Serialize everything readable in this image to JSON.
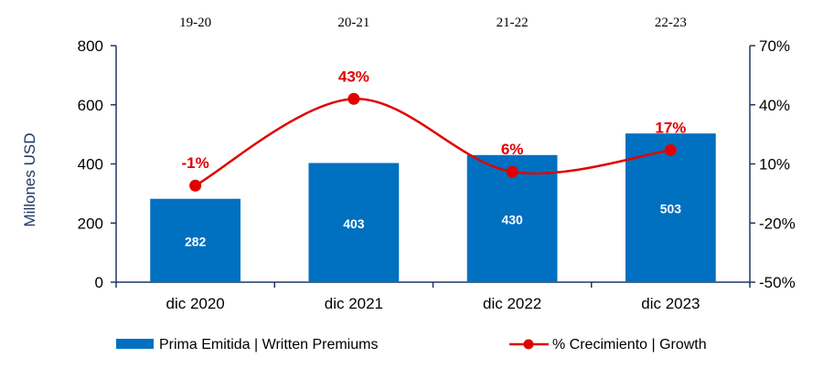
{
  "chart_data": {
    "type": "bar",
    "categories": [
      "dic 2020",
      "dic 2021",
      "dic 2022",
      "dic 2023"
    ],
    "periods": [
      "19-20",
      "20-21",
      "21-22",
      "22-23"
    ],
    "series": [
      {
        "name": "Prima Emitida | Written Premiums",
        "type": "bar",
        "axis": "left",
        "values": [
          282,
          403,
          430,
          503
        ],
        "labels": [
          "282",
          "403",
          "430",
          "503"
        ],
        "color": "#0070c0"
      },
      {
        "name": "% Crecimiento | Growth",
        "type": "line",
        "axis": "right",
        "values": [
          -1,
          43,
          6,
          17
        ],
        "labels": [
          "-1%",
          "43%",
          "6%",
          "17%"
        ],
        "color": "#e00000"
      }
    ],
    "ylabel": "Millones  USD",
    "ylim": [
      0,
      800
    ],
    "yticks": [
      "0",
      "200",
      "400",
      "600",
      "800"
    ],
    "y2lim": [
      -50,
      70
    ],
    "y2ticks": [
      "-50%",
      "-20%",
      "10%",
      "40%",
      "70%"
    ],
    "axis_color": "#1f3864",
    "grid": false,
    "legend": "bottom"
  }
}
